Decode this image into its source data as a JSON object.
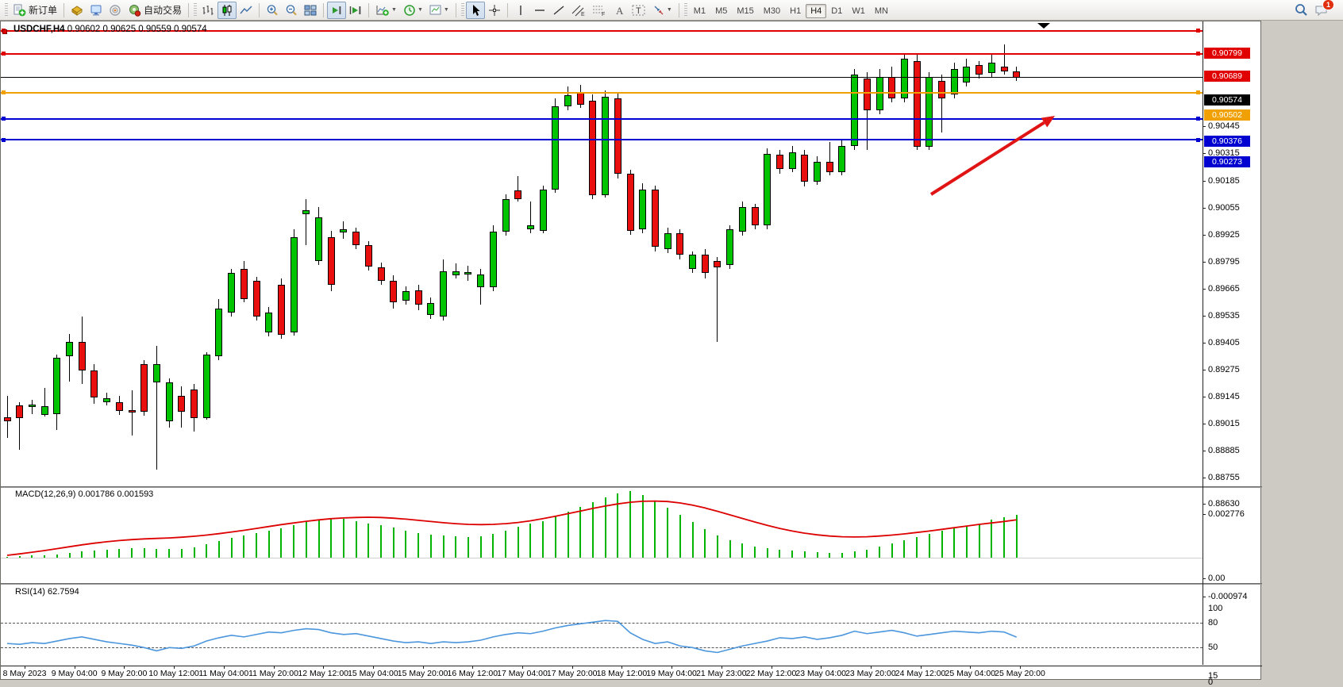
{
  "toolbar": {
    "new_order_label": "新订单",
    "autotrading_label": "自动交易",
    "timeframes": [
      "M1",
      "M5",
      "M15",
      "M30",
      "H1",
      "H4",
      "D1",
      "W1",
      "MN"
    ],
    "active_timeframe": "H4",
    "notification_badge": "1"
  },
  "chart_title": {
    "symbol_period": "USDCHF,H4",
    "ohlc_text": "0.90602 0.90625 0.90559 0.90574"
  },
  "chart_data": {
    "type": "candlestick",
    "symbol": "USDCHF",
    "timeframe": "H4",
    "price_range": {
      "top": 0.90843,
      "bottom": 0.88613
    },
    "price_ticks": [
      "0.90445",
      "0.90315",
      "0.90185",
      "0.90055",
      "0.89925",
      "0.89795",
      "0.89665",
      "0.89535",
      "0.89405",
      "0.89275",
      "0.89145",
      "0.89015",
      "0.88885",
      "0.88755",
      "0.88630"
    ],
    "hlines": [
      {
        "label": "0.90799",
        "price": 0.90799,
        "color": "#e00000",
        "thick": 2
      },
      {
        "label": "0.90689",
        "price": 0.90689,
        "color": "#e00000",
        "thick": 2
      },
      {
        "label": "0.90574",
        "price": 0.90574,
        "color": "#000000",
        "thick": 1,
        "current": true
      },
      {
        "label": "0.90502",
        "price": 0.90502,
        "color": "#f0a000",
        "thick": 2
      },
      {
        "label": "0.90376",
        "price": 0.90376,
        "color": "#0000d0",
        "thick": 2
      },
      {
        "label": "0.90273",
        "price": 0.90273,
        "color": "#0000d0",
        "thick": 2
      }
    ],
    "time_labels": [
      "8 May 2023",
      "9 May 04:00",
      "9 May 20:00",
      "10 May 12:00",
      "11 May 04:00",
      "11 May 20:00",
      "12 May 12:00",
      "15 May 04:00",
      "15 May 20:00",
      "16 May 12:00",
      "17 May 04:00",
      "17 May 20:00",
      "18 May 12:00",
      "19 May 04:00",
      "21 May 23:00",
      "22 May 12:00",
      "23 May 04:00",
      "23 May 20:00",
      "24 May 12:00",
      "25 May 04:00",
      "25 May 20:00"
    ],
    "candles": [
      [
        0.88938,
        0.89041,
        0.88839,
        0.88919
      ],
      [
        0.88995,
        0.8901,
        0.88781,
        0.88934
      ],
      [
        0.88988,
        0.89022,
        0.88953,
        0.88999
      ],
      [
        0.88949,
        0.89079,
        0.88942,
        0.88991
      ],
      [
        0.88953,
        0.8924,
        0.88877,
        0.89224
      ],
      [
        0.89232,
        0.89339,
        0.8911,
        0.89301
      ],
      [
        0.89301,
        0.89423,
        0.89098,
        0.89163
      ],
      [
        0.89163,
        0.89194,
        0.89003,
        0.89033
      ],
      [
        0.8901,
        0.89056,
        0.88995,
        0.8903
      ],
      [
        0.8901,
        0.89041,
        0.88949,
        0.88968
      ],
      [
        0.88972,
        0.89068,
        0.8885,
        0.88961
      ],
      [
        0.89194,
        0.89213,
        0.88945,
        0.88965
      ],
      [
        0.89106,
        0.89282,
        0.88686,
        0.89194
      ],
      [
        0.88919,
        0.89125,
        0.88888,
        0.89106
      ],
      [
        0.89041,
        0.89087,
        0.88888,
        0.88965
      ],
      [
        0.89072,
        0.89098,
        0.88869,
        0.88934
      ],
      [
        0.88934,
        0.89251,
        0.88926,
        0.8924
      ],
      [
        0.89232,
        0.89507,
        0.89213,
        0.89461
      ],
      [
        0.89442,
        0.89652,
        0.89423,
        0.89633
      ],
      [
        0.89652,
        0.8969,
        0.89492,
        0.89507
      ],
      [
        0.89595,
        0.89614,
        0.89404,
        0.89423
      ],
      [
        0.89347,
        0.89469,
        0.89328,
        0.89442
      ],
      [
        0.89576,
        0.89606,
        0.89316,
        0.89335
      ],
      [
        0.89347,
        0.89843,
        0.89331,
        0.89805
      ],
      [
        0.89916,
        0.89988,
        0.89767,
        0.89935
      ],
      [
        0.8969,
        0.8995,
        0.89671,
        0.89901
      ],
      [
        0.89805,
        0.89836,
        0.89545,
        0.89576
      ],
      [
        0.89828,
        0.89881,
        0.89797,
        0.89843
      ],
      [
        0.89832,
        0.89851,
        0.89748,
        0.89767
      ],
      [
        0.89767,
        0.89786,
        0.89645,
        0.89664
      ],
      [
        0.8966,
        0.89683,
        0.89576,
        0.89595
      ],
      [
        0.89595,
        0.89622,
        0.89461,
        0.89492
      ],
      [
        0.89499,
        0.89568,
        0.8948,
        0.89545
      ],
      [
        0.89549,
        0.89576,
        0.89454,
        0.8948
      ],
      [
        0.89431,
        0.89515,
        0.89412,
        0.89488
      ],
      [
        0.89423,
        0.89698,
        0.89404,
        0.89641
      ],
      [
        0.89622,
        0.89679,
        0.89606,
        0.89641
      ],
      [
        0.89626,
        0.89668,
        0.89595,
        0.89637
      ],
      [
        0.89564,
        0.89652,
        0.8948,
        0.89626
      ],
      [
        0.89564,
        0.89862,
        0.89545,
        0.89832
      ],
      [
        0.89832,
        0.90011,
        0.89813,
        0.89988
      ],
      [
        0.9003,
        0.90099,
        0.89977,
        0.89988
      ],
      [
        0.89843,
        0.89977,
        0.89824,
        0.89862
      ],
      [
        0.89836,
        0.90053,
        0.89824,
        0.90034
      ],
      [
        0.90034,
        0.90474,
        0.90019,
        0.90435
      ],
      [
        0.90435,
        0.90531,
        0.90416,
        0.90489
      ],
      [
        0.905,
        0.90538,
        0.90428,
        0.90443
      ],
      [
        0.90462,
        0.90493,
        0.89988,
        0.90008
      ],
      [
        0.90008,
        0.90512,
        0.89996,
        0.90481
      ],
      [
        0.90474,
        0.905,
        0.90088,
        0.90111
      ],
      [
        0.90111,
        0.9013,
        0.89817,
        0.89836
      ],
      [
        0.89843,
        0.90065,
        0.89824,
        0.90034
      ],
      [
        0.90034,
        0.90053,
        0.89736,
        0.89759
      ],
      [
        0.89748,
        0.89851,
        0.89729,
        0.89824
      ],
      [
        0.89824,
        0.89843,
        0.89698,
        0.89721
      ],
      [
        0.89652,
        0.89736,
        0.89633,
        0.89721
      ],
      [
        0.89721,
        0.89748,
        0.89606,
        0.89633
      ],
      [
        0.8969,
        0.8971,
        0.89301,
        0.8966
      ],
      [
        0.89671,
        0.89862,
        0.89652,
        0.89843
      ],
      [
        0.89832,
        0.89977,
        0.89813,
        0.8995
      ],
      [
        0.8995,
        0.89965,
        0.89843,
        0.89862
      ],
      [
        0.89862,
        0.90233,
        0.89843,
        0.90206
      ],
      [
        0.90202,
        0.90225,
        0.90111,
        0.90134
      ],
      [
        0.90134,
        0.90244,
        0.90118,
        0.90214
      ],
      [
        0.90202,
        0.90225,
        0.9005,
        0.90072
      ],
      [
        0.90072,
        0.90195,
        0.90057,
        0.90168
      ],
      [
        0.90168,
        0.90263,
        0.90103,
        0.90118
      ],
      [
        0.90118,
        0.90271,
        0.90103,
        0.90244
      ],
      [
        0.90244,
        0.90615,
        0.90225,
        0.90588
      ],
      [
        0.90569,
        0.906,
        0.90225,
        0.90416
      ],
      [
        0.90416,
        0.90615,
        0.90397,
        0.90577
      ],
      [
        0.90577,
        0.90626,
        0.90454,
        0.90474
      ],
      [
        0.90474,
        0.90691,
        0.90454,
        0.90665
      ],
      [
        0.90653,
        0.90684,
        0.90225,
        0.90241
      ],
      [
        0.90241,
        0.906,
        0.90225,
        0.90577
      ],
      [
        0.90558,
        0.90588,
        0.90309,
        0.90474
      ],
      [
        0.90493,
        0.90645,
        0.90474,
        0.90615
      ],
      [
        0.9055,
        0.90665,
        0.90531,
        0.90626
      ],
      [
        0.90634,
        0.90653,
        0.90569,
        0.90588
      ],
      [
        0.90596,
        0.90684,
        0.90577,
        0.90645
      ],
      [
        0.90626,
        0.90733,
        0.90588,
        0.90603
      ],
      [
        0.90602,
        0.90625,
        0.90559,
        0.90574
      ]
    ],
    "macd": {
      "label": "MACD(12,26,9)",
      "values": "0.001786 0.001593",
      "axis": [
        "0.002776",
        "0.00",
        "-0.000974"
      ],
      "hist_micro": [
        30,
        60,
        90,
        110,
        150,
        200,
        260,
        300,
        330,
        360,
        390,
        400,
        380,
        360,
        380,
        450,
        560,
        700,
        850,
        950,
        1050,
        1150,
        1250,
        1380,
        1500,
        1600,
        1650,
        1620,
        1550,
        1450,
        1380,
        1280,
        1150,
        1050,
        980,
        950,
        900,
        870,
        900,
        1000,
        1150,
        1300,
        1420,
        1550,
        1750,
        1950,
        2150,
        2350,
        2550,
        2700,
        2800,
        2650,
        2400,
        2100,
        1800,
        1500,
        1200,
        950,
        750,
        600,
        480,
        400,
        350,
        300,
        260,
        230,
        210,
        200,
        260,
        350,
        470,
        600,
        740,
        880,
        1000,
        1120,
        1230,
        1320,
        1400,
        1600,
        1700,
        1786
      ],
      "signal_micro": [
        100,
        160,
        230,
        300,
        380,
        460,
        540,
        610,
        670,
        720,
        760,
        790,
        810,
        830,
        860,
        900,
        950,
        1010,
        1080,
        1150,
        1230,
        1310,
        1390,
        1460,
        1530,
        1590,
        1640,
        1670,
        1690,
        1700,
        1690,
        1660,
        1620,
        1570,
        1520,
        1470,
        1430,
        1400,
        1390,
        1400,
        1430,
        1480,
        1550,
        1640,
        1740,
        1850,
        1960,
        2070,
        2170,
        2260,
        2330,
        2370,
        2380,
        2360,
        2300,
        2210,
        2090,
        1950,
        1800,
        1650,
        1500,
        1360,
        1230,
        1120,
        1030,
        960,
        910,
        880,
        870,
        880,
        910,
        950,
        1000,
        1060,
        1120,
        1190,
        1260,
        1330,
        1400,
        1460,
        1520,
        1593
      ]
    },
    "rsi": {
      "label": "RSI(14)",
      "value": "62.7594",
      "levels": [
        100,
        80,
        50,
        15,
        0
      ],
      "series": [
        55,
        54,
        56,
        55,
        58,
        61,
        63,
        60,
        57,
        55,
        53,
        50,
        46,
        50,
        49,
        52,
        58,
        62,
        65,
        63,
        66,
        69,
        68,
        71,
        73,
        72,
        68,
        66,
        67,
        64,
        61,
        58,
        56,
        57,
        55,
        57,
        56,
        57,
        59,
        63,
        66,
        68,
        67,
        70,
        74,
        77,
        79,
        81,
        83,
        82,
        68,
        60,
        55,
        57,
        52,
        50,
        46,
        44,
        48,
        52,
        55,
        58,
        62,
        61,
        63,
        60,
        62,
        65,
        70,
        67,
        69,
        71,
        68,
        64,
        66,
        68,
        70,
        69,
        68,
        70,
        69,
        62.7594
      ]
    }
  },
  "annotations": {
    "trend_arrow": {
      "from": [
        1172,
        246
      ],
      "to": [
        1328,
        147
      ],
      "color": "#e01414"
    }
  }
}
